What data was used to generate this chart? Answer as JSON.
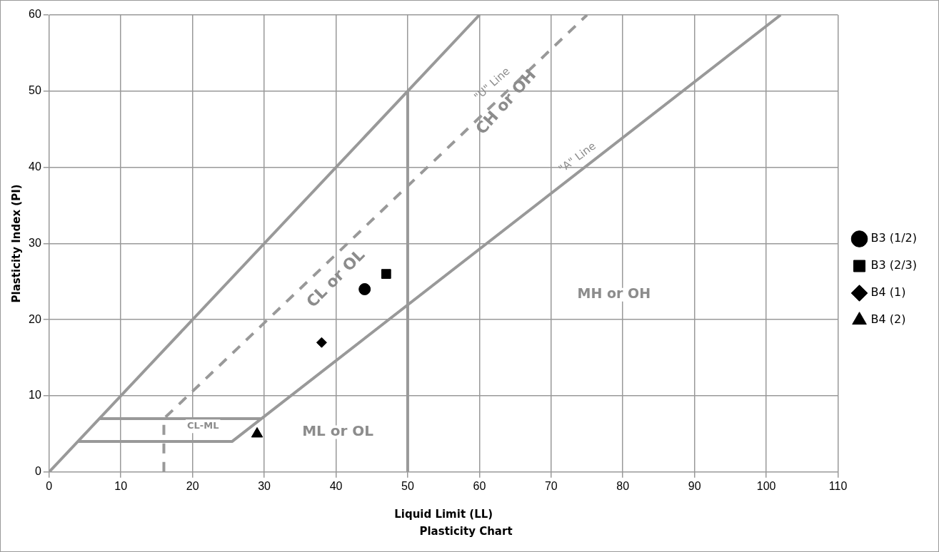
{
  "chart_data": {
    "type": "scatter",
    "title": "Plasticity Chart",
    "xlabel": "Liquid Limit (LL)",
    "ylabel": "Plasticity Index (PI)",
    "xlim": [
      0,
      110
    ],
    "xticks": [
      0,
      10,
      20,
      30,
      40,
      50,
      60,
      70,
      80,
      90,
      100,
      110
    ],
    "ylim": [
      0,
      60
    ],
    "yticks": [
      0,
      10,
      20,
      30,
      40,
      50,
      60
    ],
    "grid": true,
    "legend": "right",
    "series": [
      {
        "type": "line",
        "color": "#999999",
        "marker": "none",
        "line_style": "solid",
        "x": [
          0,
          60
        ],
        "values": [
          0,
          60
        ]
      },
      {
        "type": "line",
        "color": "#999999",
        "marker": "none",
        "line_style": "dashed",
        "x": [
          16,
          16,
          75
        ],
        "values": [
          0,
          7,
          60
        ]
      },
      {
        "type": "line",
        "color": "#999999",
        "marker": "none",
        "line_style": "solid",
        "x": [
          4,
          25.5,
          102
        ],
        "values": [
          4,
          4,
          60
        ]
      },
      {
        "type": "line",
        "color": "#999999",
        "marker": "none",
        "line_style": "solid",
        "x": [
          7,
          29.6
        ],
        "values": [
          7,
          7
        ]
      },
      {
        "type": "line",
        "color": "#999999",
        "marker": "none",
        "line_style": "solid",
        "x": [
          50,
          50
        ],
        "values": [
          0,
          50
        ]
      },
      {
        "name": "B3 (1/2)",
        "color": "#000000",
        "marker": "circle",
        "x": [
          44
        ],
        "values": [
          24
        ]
      },
      {
        "name": "B3 (2/3)",
        "color": "#000000",
        "marker": "square",
        "x": [
          47
        ],
        "values": [
          26
        ]
      },
      {
        "name": "B4 (1)",
        "color": "#000000",
        "marker": "diamond",
        "x": [
          38
        ],
        "values": [
          17
        ]
      },
      {
        "name": "B4 (2)",
        "color": "#000000",
        "marker": "triangle",
        "x": [
          29
        ],
        "values": [
          5
        ]
      }
    ],
    "annotations": [
      "CL or OL",
      "CH or OH",
      "MH or OH",
      "ML or OL",
      "CL-ML",
      "\"U\" Line",
      "\"A\" Line"
    ]
  }
}
